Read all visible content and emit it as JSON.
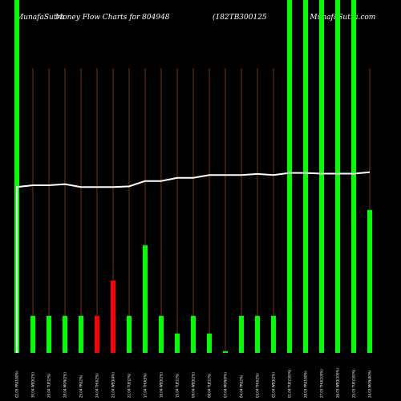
{
  "header": {
    "site": "MunafaSutra",
    "title_main": "Money Flow  Charts for 804948",
    "code": "(182TB300125",
    "site_url": ") MunafaSutra.com"
  },
  "chart_data": {
    "type": "bar",
    "title": "MunafaSutra  Money Flow  Charts for 804948  (182TB300125 ) MunafaSutra.com",
    "grid": true,
    "colors": {
      "up": "#00ff00",
      "down": "#ff0000",
      "line": "#ffffff",
      "grid": "#8b4513",
      "background": "#000000"
    },
    "categories": [
      "02.05 FRI(100%)",
      "30.04 WED(2%)",
      "29.04 TUE(2%)",
      "28.04 MON(2%)",
      "25.04 FRI(2%)",
      "24.04 THU(2%)",
      "23.04 WED(4%)",
      "22.04 TUE(2%)",
      "17.04 THU(5%)",
      "16.04 WED(2%)",
      "15.04 TUE(1%)",
      "09.04 WED(2%)",
      "08.04 TUE(1%)",
      "07.04 MON(0%)",
      "04.04 FRI(2%)",
      "03.04 THU(2%)",
      "02.04 WED(2%)",
      "01.04 TUE(100%)",
      "28.03 FRI(100%)",
      "27.03 THU(100%)",
      "26.03 WED(100%)",
      "25.03 TUE(100%)",
      "24.03 MON(40%)"
    ],
    "values": [
      100,
      10.5,
      10.5,
      10.5,
      10.5,
      10.5,
      20.5,
      10.5,
      30.5,
      10.5,
      5.5,
      10.5,
      5.5,
      0.5,
      10.5,
      10.5,
      10.5,
      100,
      100,
      100,
      100,
      100,
      40.5
    ],
    "directions": [
      "up",
      "up",
      "up",
      "up",
      "up",
      "down",
      "down",
      "up",
      "up",
      "up",
      "up",
      "up",
      "up",
      "up",
      "up",
      "up",
      "up",
      "up",
      "up",
      "up",
      "up",
      "up",
      "up"
    ],
    "line_values": [
      47,
      47.5,
      47.5,
      47.8,
      47,
      47,
      47,
      47.2,
      48.7,
      48.7,
      49.6,
      49.6,
      50.4,
      50.4,
      50.4,
      50.7,
      50.4,
      51,
      51,
      50.8,
      50.8,
      50.8,
      51.2
    ],
    "ylim": [
      0,
      100
    ]
  }
}
